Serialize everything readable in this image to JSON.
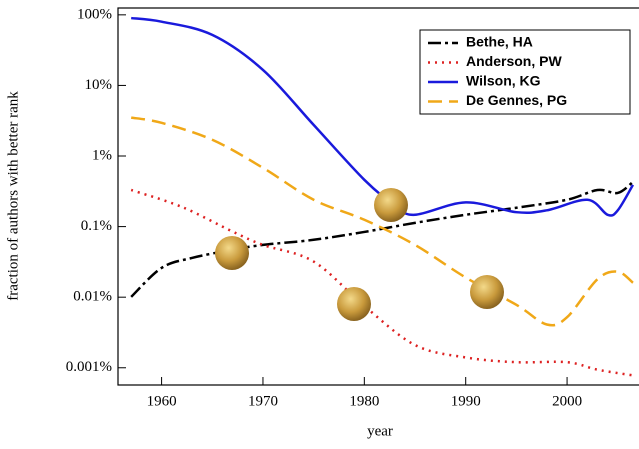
{
  "chart_data": {
    "type": "line",
    "x_label": "year",
    "y_label": "fraction of authors with better rank",
    "log_y": true,
    "xlim": [
      1955.7,
      2006.8
    ],
    "xticks": [
      1960,
      1970,
      1980,
      1990,
      2000
    ],
    "ylim": [
      0.00057,
      125
    ],
    "yticks": [
      {
        "value": 100,
        "label": "100%"
      },
      {
        "value": 10,
        "label": "10%"
      },
      {
        "value": 1,
        "label": "1%"
      },
      {
        "value": 0.1,
        "label": "0.1%"
      },
      {
        "value": 0.01,
        "label": "0.01%"
      },
      {
        "value": 0.001,
        "label": "0.001%"
      }
    ],
    "legend_position": "upper right",
    "series": [
      {
        "name": "Bethe, HA",
        "color": "#000000",
        "dash": "13,4,3,4",
        "x": [
          1957,
          1960,
          1963,
          1967,
          1970,
          1975,
          1980,
          1985,
          1990,
          1995,
          2000,
          2003,
          2005,
          2006.5
        ],
        "values": [
          0.0101,
          0.026,
          0.036,
          0.047,
          0.055,
          0.065,
          0.084,
          0.113,
          0.147,
          0.185,
          0.24,
          0.33,
          0.3,
          0.43
        ]
      },
      {
        "name": "Anderson, PW",
        "color": "#dd2222",
        "dash": "2,5",
        "x": [
          1957,
          1962,
          1967,
          1970,
          1975,
          1980,
          1985,
          1990,
          1995,
          2000,
          2003,
          2006.5
        ],
        "values": [
          0.33,
          0.19,
          0.085,
          0.055,
          0.032,
          0.0075,
          0.0021,
          0.0014,
          0.0012,
          0.0012,
          0.00094,
          0.00078
        ]
      },
      {
        "name": "Wilson, KG",
        "color": "#1a1adc",
        "dash": "none",
        "x": [
          1957,
          1960,
          1965,
          1970,
          1975,
          1980,
          1983,
          1985,
          1990,
          1995,
          1998,
          2002,
          2004,
          2005,
          2006.5
        ],
        "values": [
          90,
          80,
          52,
          16.6,
          2.76,
          0.46,
          0.2,
          0.147,
          0.22,
          0.16,
          0.17,
          0.24,
          0.147,
          0.17,
          0.39
        ]
      },
      {
        "name": "De Gennes, PG",
        "color": "#f0a818",
        "dash": "14,7",
        "x": [
          1957,
          1960,
          1965,
          1970,
          1975,
          1980,
          1985,
          1990,
          1995,
          1998,
          2000,
          2003,
          2005,
          2006.5
        ],
        "values": [
          3.5,
          2.95,
          1.7,
          0.68,
          0.24,
          0.125,
          0.055,
          0.019,
          0.0078,
          0.0041,
          0.0052,
          0.018,
          0.023,
          0.016
        ]
      }
    ]
  }
}
